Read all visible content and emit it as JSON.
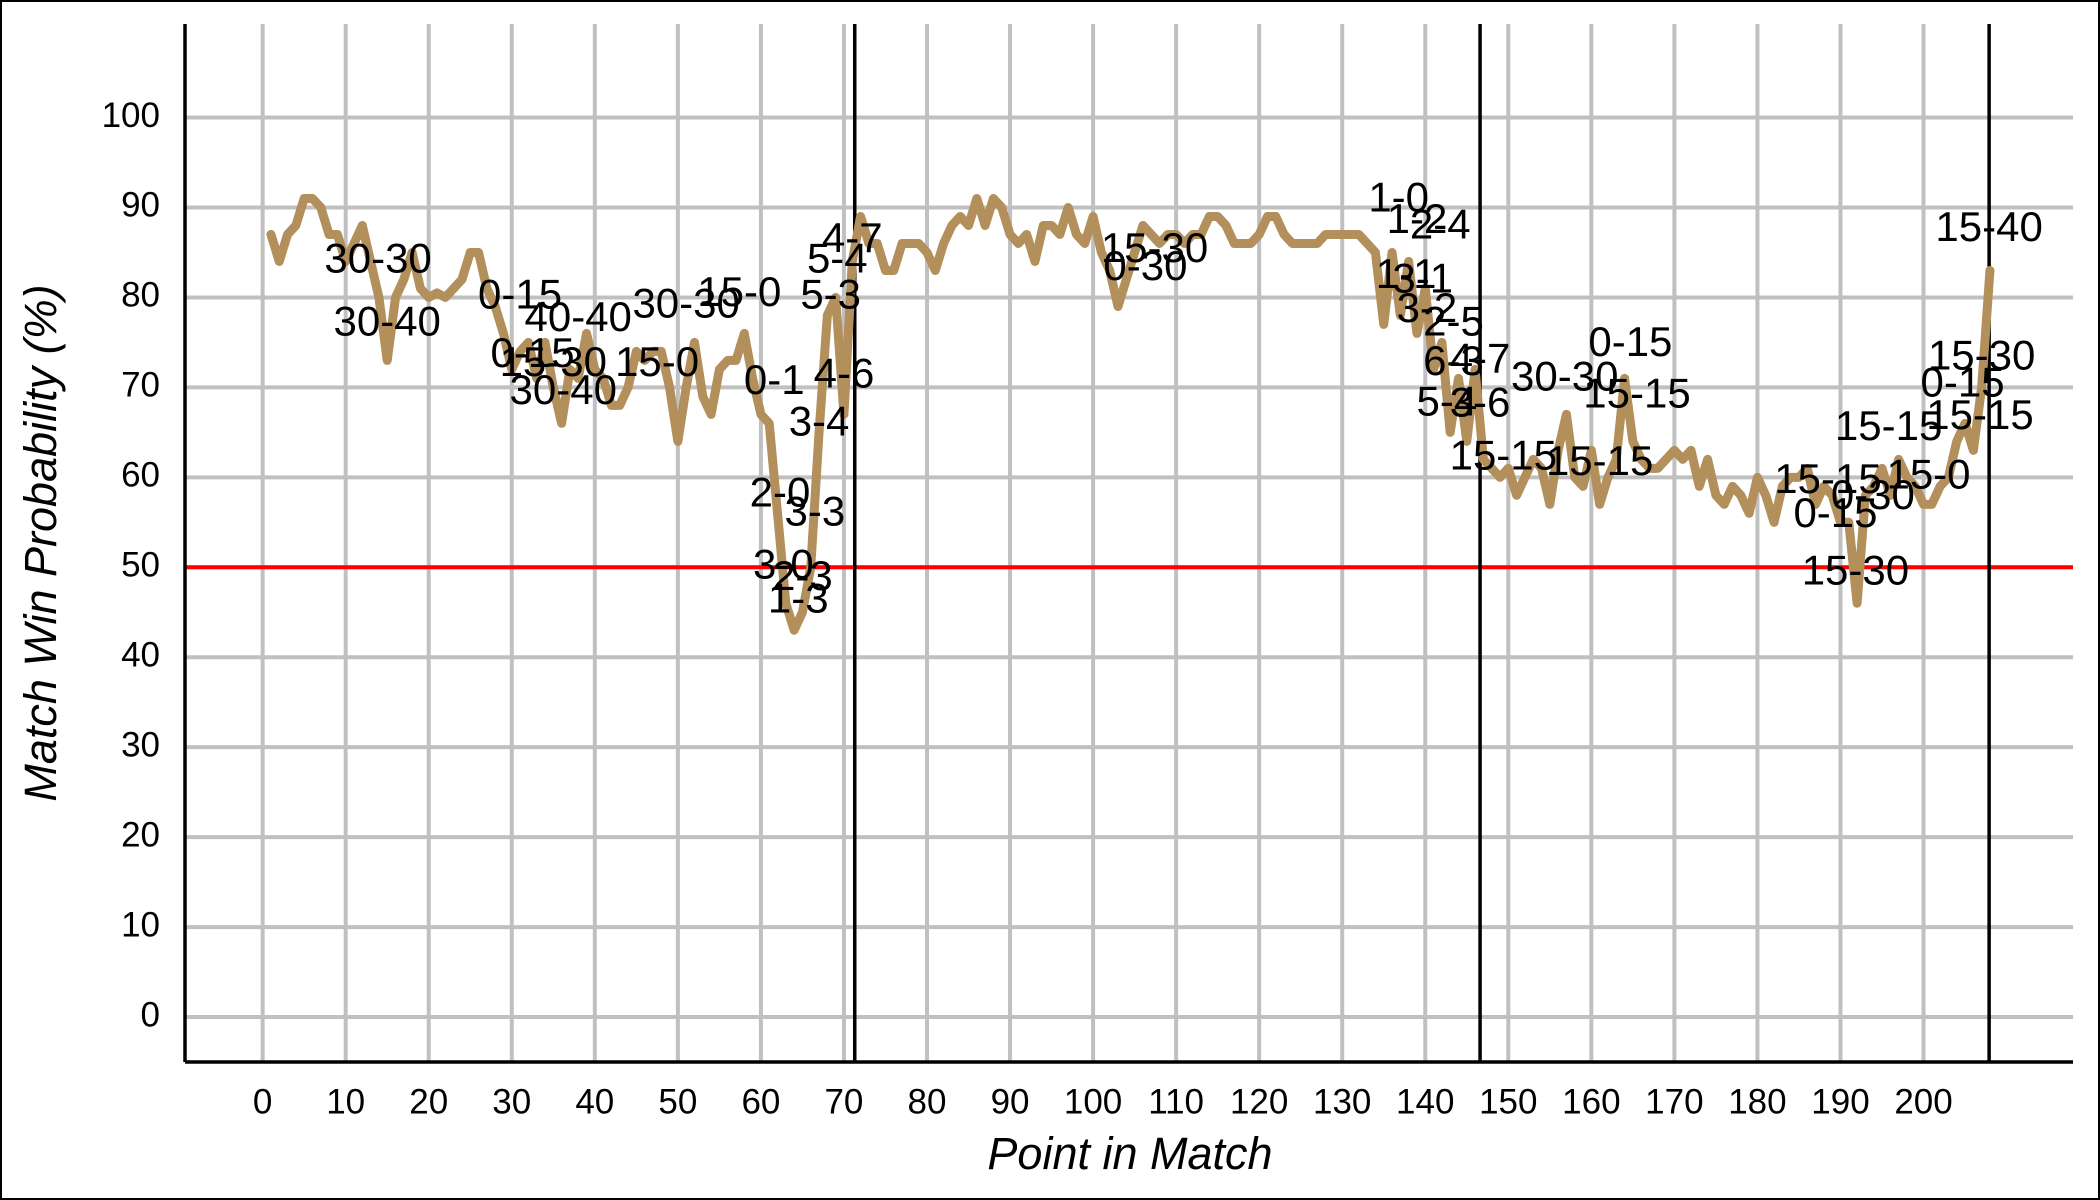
{
  "chart_data": {
    "type": "line",
    "x_label": "Point in Match",
    "y_label": "Match Win Probability (%)",
    "color": "#b28f5b",
    "x": [
      1,
      2,
      3,
      4,
      5,
      6,
      7,
      8,
      9,
      10,
      11,
      12,
      13,
      14,
      15,
      16,
      17,
      18,
      19,
      20,
      21,
      22,
      23,
      24,
      25,
      26,
      27,
      28,
      29,
      30,
      31,
      32,
      33,
      34,
      35,
      36,
      37,
      38,
      39,
      40,
      41,
      42,
      43,
      44,
      45,
      46,
      47,
      48,
      49,
      50,
      51,
      52,
      53,
      54,
      55,
      56,
      57,
      58,
      59,
      60,
      61,
      62,
      63,
      64,
      65,
      66,
      67,
      68,
      69,
      70,
      71,
      72,
      73,
      74,
      75,
      76,
      77,
      78,
      79,
      80,
      81,
      82,
      83,
      84,
      85,
      86,
      87,
      88,
      89,
      90,
      91,
      92,
      93,
      94,
      95,
      96,
      97,
      98,
      99,
      100,
      101,
      102,
      103,
      104,
      105,
      106,
      107,
      108,
      109,
      110,
      111,
      112,
      113,
      114,
      115,
      116,
      117,
      118,
      119,
      120,
      121,
      122,
      123,
      124,
      125,
      126,
      127,
      128,
      129,
      130,
      131,
      132,
      133,
      134,
      135,
      136,
      137,
      138,
      139,
      140,
      141,
      142,
      143,
      144,
      145,
      146,
      147,
      148,
      149,
      150,
      151,
      152,
      153,
      154,
      155,
      156,
      157,
      158,
      159,
      160,
      161,
      162,
      163,
      164,
      165,
      166,
      167,
      168,
      169,
      170,
      171,
      172,
      173,
      174,
      175,
      176,
      177,
      178,
      179,
      180,
      181,
      182,
      183,
      184,
      185,
      186,
      187,
      188,
      189,
      190,
      191,
      192,
      193,
      194,
      195,
      196,
      197,
      198,
      199,
      200,
      201,
      202,
      203,
      204,
      205,
      206,
      207,
      208
    ],
    "values": [
      87,
      84,
      87,
      88,
      91,
      91,
      90,
      87,
      87,
      84,
      86,
      88,
      84,
      80,
      73,
      80,
      82,
      85,
      81,
      80,
      80.5,
      80,
      81,
      82,
      85,
      85,
      81,
      79,
      76,
      72,
      74,
      75,
      71,
      75,
      70,
      66,
      72,
      71,
      76,
      72,
      71,
      68,
      68,
      70,
      74,
      73,
      74,
      74,
      70,
      64,
      70,
      75,
      69,
      67,
      72,
      73,
      73,
      76,
      71,
      67,
      66,
      56,
      46,
      43,
      45,
      50,
      65,
      78,
      80,
      67,
      84,
      89,
      86,
      86,
      83,
      83,
      86,
      86,
      86,
      85,
      83,
      86,
      88,
      89,
      88,
      91,
      88,
      91,
      90,
      87,
      86,
      87,
      84,
      88,
      88,
      87,
      90,
      87,
      86,
      89,
      85,
      83,
      79,
      82,
      85,
      88,
      87,
      86,
      87,
      87,
      86,
      87,
      87,
      89,
      89,
      88,
      86,
      86,
      86,
      87,
      89,
      89,
      87,
      86,
      86,
      86,
      86,
      87,
      87,
      87,
      87,
      87,
      86,
      85,
      77,
      85,
      78,
      84,
      76,
      81,
      72,
      75,
      65,
      71,
      64,
      72,
      62,
      61,
      60,
      61,
      58,
      60,
      62,
      61,
      57,
      63,
      67,
      60,
      59,
      63,
      57,
      60,
      62,
      71,
      64,
      62,
      61,
      61,
      62,
      63,
      62,
      63,
      59,
      62,
      58,
      57,
      59,
      58,
      56,
      60,
      58,
      55,
      59,
      60,
      60,
      61,
      57,
      59,
      58,
      55,
      55,
      46,
      58,
      59,
      61,
      58,
      62,
      60,
      59,
      57,
      57,
      59,
      60,
      64,
      66,
      63,
      70,
      83
    ],
    "xlim": [
      -9.35,
      218
    ],
    "ylim": [
      -5,
      110.4
    ],
    "xticks": [
      0,
      10,
      20,
      30,
      40,
      50,
      60,
      70,
      80,
      90,
      100,
      110,
      120,
      130,
      140,
      150,
      160,
      170,
      180,
      190,
      200
    ],
    "yticks": [
      0,
      10,
      20,
      30,
      40,
      50,
      60,
      70,
      80,
      90,
      100
    ],
    "grid": true,
    "reference_line": {
      "y": 50,
      "color": "#ff0000"
    },
    "set_boundaries": [
      71.3,
      146.6,
      207.9
    ],
    "annotations": [
      {
        "x": 13.9,
        "y": 84,
        "text": "30-30"
      },
      {
        "x": 15,
        "y": 77,
        "text": "30-40"
      },
      {
        "x": 31,
        "y": 80,
        "text": "0-15"
      },
      {
        "x": 38,
        "y": 77.5,
        "text": "40-40"
      },
      {
        "x": 32.5,
        "y": 73.5,
        "text": "0-15"
      },
      {
        "x": 35,
        "y": 72.5,
        "text": "15-30"
      },
      {
        "x": 36.2,
        "y": 69.4,
        "text": "30-40"
      },
      {
        "x": 47.5,
        "y": 72.5,
        "text": "15-0"
      },
      {
        "x": 51,
        "y": 79,
        "text": "30-30"
      },
      {
        "x": 57.4,
        "y": 80.3,
        "text": "15-0"
      },
      {
        "x": 68.4,
        "y": 80,
        "text": "5-3"
      },
      {
        "x": 69.2,
        "y": 84,
        "text": "5-4"
      },
      {
        "x": 71,
        "y": 86.3,
        "text": "4-7"
      },
      {
        "x": 61.6,
        "y": 70.5,
        "text": "0-1"
      },
      {
        "x": 70,
        "y": 71.2,
        "text": "4-6"
      },
      {
        "x": 67,
        "y": 65.9,
        "text": "3-4"
      },
      {
        "x": 62.3,
        "y": 58,
        "text": "2-0"
      },
      {
        "x": 66.5,
        "y": 55.9,
        "text": "3-3"
      },
      {
        "x": 62.7,
        "y": 50,
        "text": "3-0"
      },
      {
        "x": 65,
        "y": 48.7,
        "text": "2-3"
      },
      {
        "x": 64.5,
        "y": 46.2,
        "text": "1-3"
      },
      {
        "x": 107.4,
        "y": 85.2,
        "text": "15-30"
      },
      {
        "x": 106.3,
        "y": 83.2,
        "text": "0-30"
      },
      {
        "x": 136.8,
        "y": 90.8,
        "text": "1-0"
      },
      {
        "x": 139,
        "y": 88.4,
        "text": "1-2"
      },
      {
        "x": 141.8,
        "y": 87.8,
        "text": "2-4"
      },
      {
        "x": 137.7,
        "y": 82.3,
        "text": "1-1"
      },
      {
        "x": 139.7,
        "y": 81.8,
        "text": "3-1"
      },
      {
        "x": 140.2,
        "y": 78.5,
        "text": "3-2"
      },
      {
        "x": 143.4,
        "y": 77,
        "text": "2-5"
      },
      {
        "x": 143.4,
        "y": 72.6,
        "text": "6-3"
      },
      {
        "x": 146.6,
        "y": 72.9,
        "text": "4-7"
      },
      {
        "x": 142.6,
        "y": 68.1,
        "text": "5-4"
      },
      {
        "x": 146.6,
        "y": 68,
        "text": "3-6"
      },
      {
        "x": 156.8,
        "y": 70.9,
        "text": "30-30"
      },
      {
        "x": 149.4,
        "y": 62.1,
        "text": "15-15"
      },
      {
        "x": 161,
        "y": 61.5,
        "text": "15-15"
      },
      {
        "x": 164.7,
        "y": 74.7,
        "text": "0-15"
      },
      {
        "x": 165.5,
        "y": 69,
        "text": "15-15"
      },
      {
        "x": 195.8,
        "y": 65.4,
        "text": "15-15"
      },
      {
        "x": 188.5,
        "y": 59.5,
        "text": "15-15"
      },
      {
        "x": 189.4,
        "y": 55.7,
        "text": "0-15"
      },
      {
        "x": 193.9,
        "y": 57.7,
        "text": "0-30"
      },
      {
        "x": 200.6,
        "y": 60,
        "text": "15-0"
      },
      {
        "x": 191.8,
        "y": 49.3,
        "text": "15-30"
      },
      {
        "x": 207.9,
        "y": 87.5,
        "text": "15-40"
      },
      {
        "x": 207,
        "y": 73.2,
        "text": "15-30"
      },
      {
        "x": 204.7,
        "y": 70.2,
        "text": "0-15"
      },
      {
        "x": 206.8,
        "y": 66.6,
        "text": "15-15"
      }
    ]
  }
}
